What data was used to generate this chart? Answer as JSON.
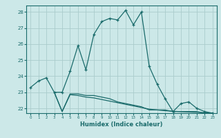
{
  "title": "",
  "xlabel": "Humidex (Indice chaleur)",
  "background_color": "#cce8e8",
  "grid_color": "#aacccc",
  "line_color": "#1a6b6b",
  "xlim": [
    -0.5,
    23.5
  ],
  "ylim": [
    21.7,
    28.4
  ],
  "yticks": [
    22,
    23,
    24,
    25,
    26,
    27,
    28
  ],
  "xticks": [
    0,
    1,
    2,
    3,
    4,
    5,
    6,
    7,
    8,
    9,
    10,
    11,
    12,
    13,
    14,
    15,
    16,
    17,
    18,
    19,
    20,
    21,
    22,
    23
  ],
  "series1_x": [
    0,
    1,
    2,
    3,
    4,
    5,
    6,
    7,
    8,
    9,
    10,
    11,
    12,
    13,
    14,
    15,
    16,
    17,
    18,
    19,
    20,
    21,
    22,
    23
  ],
  "series1_y": [
    23.3,
    23.7,
    23.9,
    23.0,
    23.0,
    24.3,
    25.9,
    24.4,
    26.6,
    27.4,
    27.6,
    27.5,
    28.1,
    27.2,
    28.0,
    24.6,
    23.5,
    22.6,
    21.8,
    22.3,
    22.4,
    22.0,
    21.8,
    21.7
  ],
  "series2_x": [
    3,
    4,
    5,
    6,
    7,
    8,
    9,
    10,
    11,
    12,
    13,
    14,
    15,
    16,
    17,
    18,
    19,
    20,
    21,
    22,
    23
  ],
  "series2_y": [
    23.0,
    21.8,
    22.85,
    22.8,
    22.7,
    22.65,
    22.55,
    22.45,
    22.35,
    22.25,
    22.15,
    22.05,
    21.95,
    21.9,
    21.85,
    21.82,
    21.79,
    21.77,
    21.75,
    21.73,
    21.71
  ],
  "series3_x": [
    3,
    4,
    5,
    6,
    7,
    8,
    9,
    10,
    11,
    12,
    13,
    14,
    15,
    16,
    17,
    18,
    19,
    20,
    21,
    22,
    23
  ],
  "series3_y": [
    23.0,
    21.8,
    22.9,
    22.9,
    22.8,
    22.8,
    22.7,
    22.6,
    22.4,
    22.3,
    22.2,
    22.1,
    21.9,
    21.9,
    21.9,
    21.8,
    21.8,
    21.8,
    21.8,
    21.7,
    21.7
  ]
}
